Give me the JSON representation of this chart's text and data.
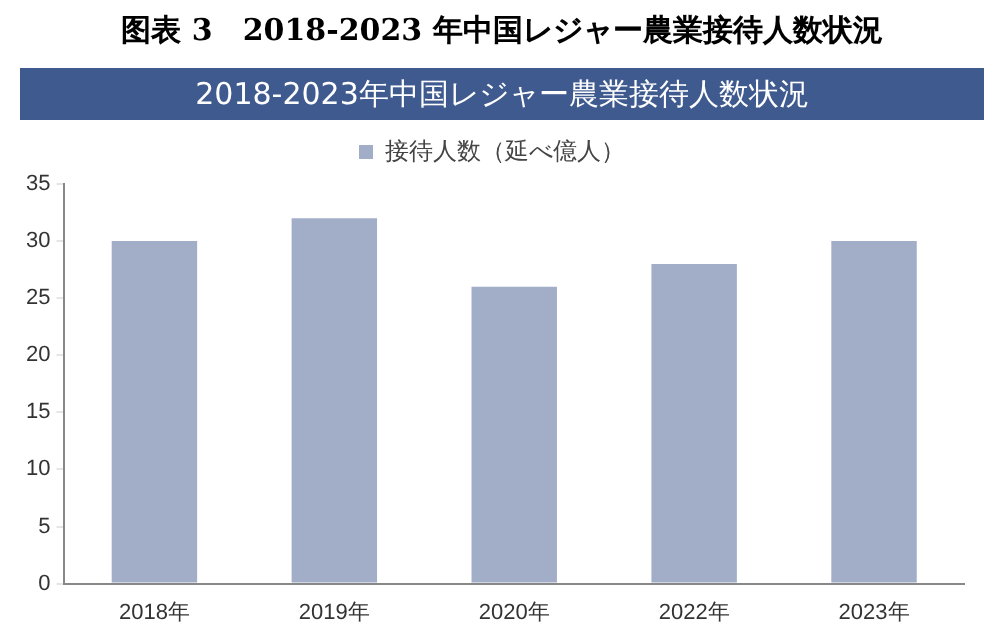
{
  "chart_data": {
    "type": "bar",
    "title": "图表 3　2018-2023 年中国レジャー農業接待人数状況",
    "subtitle": "2018-2023年中国レジャー農業接待人数状況",
    "categories": [
      "2018年",
      "2019年",
      "2020年",
      "2022年",
      "2023年"
    ],
    "series": [
      {
        "name": "接待人数（延べ億人）",
        "color": "#a2aec8",
        "values": [
          30,
          32,
          26,
          28,
          30
        ]
      }
    ],
    "ylim": [
      0,
      35
    ],
    "yticks": [
      0,
      5,
      10,
      15,
      20,
      25,
      30,
      35
    ],
    "grid": false,
    "legend": "top"
  }
}
